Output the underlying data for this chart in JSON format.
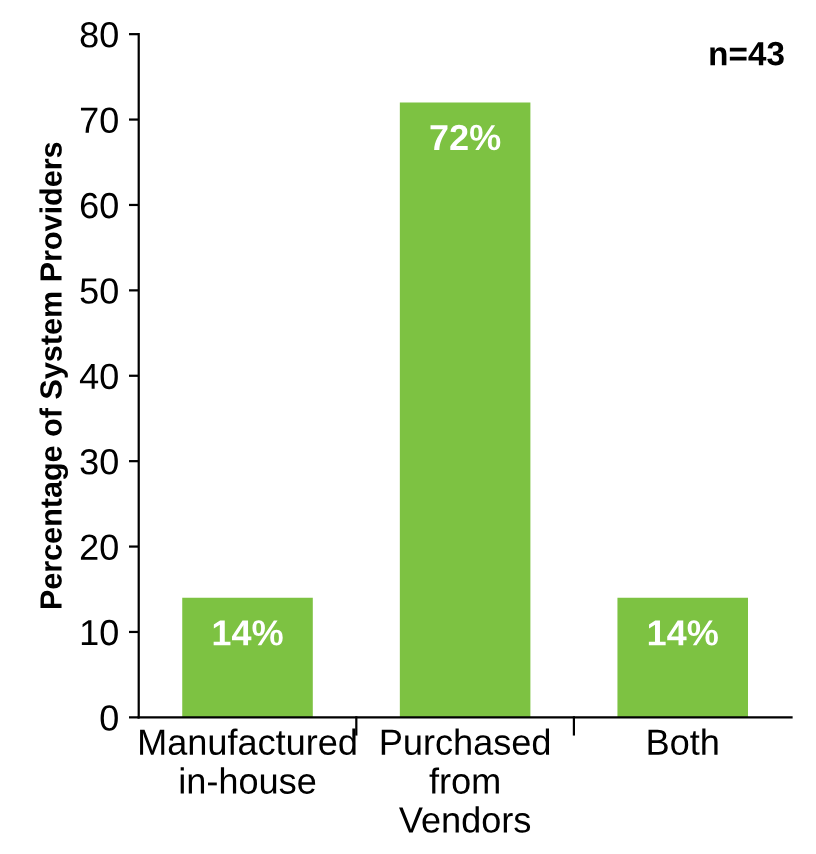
{
  "chart_data": {
    "type": "bar",
    "ylabel": "Percentage of System Providers",
    "categories": [
      "Manufactured\nin-house",
      "Purchased\nfrom\nVendors",
      "Both"
    ],
    "values": [
      14,
      72,
      14
    ],
    "value_labels": [
      "14%",
      "72%",
      "14%"
    ],
    "color": "#7dc242",
    "ylim": [
      0,
      80
    ],
    "yticks": [
      0,
      10,
      20,
      30,
      40,
      50,
      60,
      70,
      80
    ],
    "annotations": [
      "n=43"
    ]
  }
}
